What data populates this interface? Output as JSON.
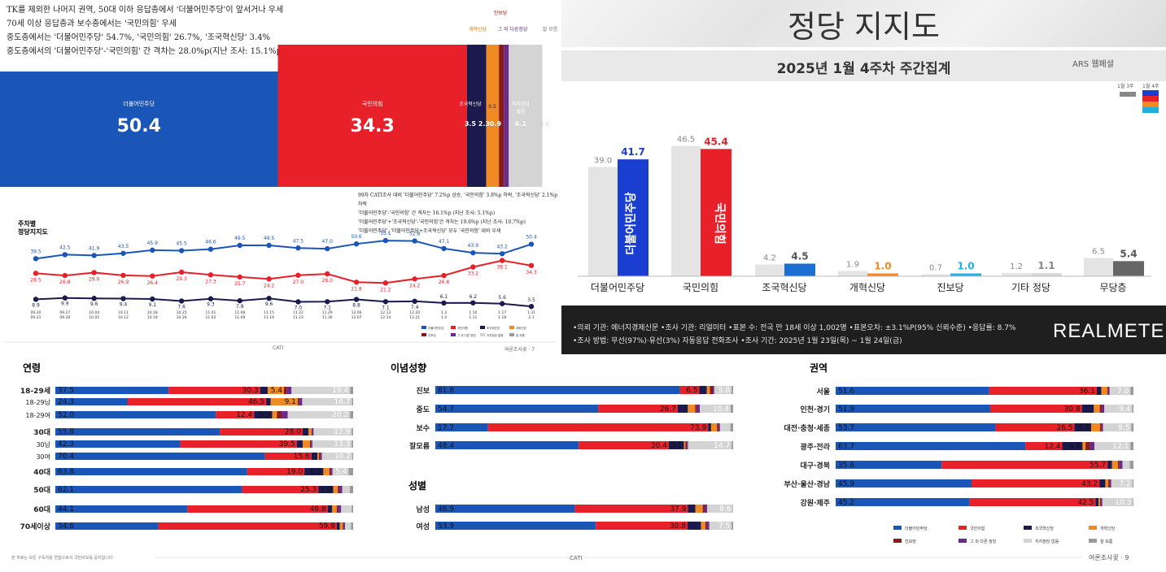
{
  "colors": {
    "blue": "#1a56b8",
    "red": "#e8202a",
    "navy": "#1b1a4e",
    "orange": "#f08a24",
    "darkred": "#8b1a1a",
    "purple": "#6a2a8a",
    "lightgray": "#d4d4d4",
    "gray": "#9a9a9a",
    "darkgray": "#5a5a5a"
  },
  "panel1": {
    "notes": [
      "TK를 제외한 나머지 권역, 50대 이하 응답층에서 '더불어민주당'이 앞서거나 우세",
      "70세 이상 응답층과 보수층에서는 '국민의힘' 우세",
      "중도층에서는 '더불어민주당' 54.7%, '국민의힘' 26.7%, '조국혁신당' 3.4%",
      "중도층에서의 '더불어민주당'-'국민의힘' 간 격차는 28.0%p(지난 조사: 15.1%p)"
    ],
    "legend_top": [
      "진보당",
      "개혁신당",
      "그 외 다른정당",
      "잘 모름"
    ],
    "chart_data": {
      "type": "bar",
      "categories": [
        "더불어민주당",
        "국민의힘",
        "조국혁신당",
        "개혁신당",
        "진보당",
        "그 외 다른정당",
        "지지정당 없음",
        "잘 모름"
      ],
      "values": [
        50.4,
        34.3,
        3.5,
        2.3,
        0.5,
        0.9,
        6.1,
        0.0
      ],
      "labels": [
        "50.4",
        "34.3",
        "3.5",
        "2.3",
        "0.5",
        "0.9",
        "6.1",
        "0.0"
      ],
      "names": [
        "더불어민주당",
        "국민의힘",
        "조국혁신당",
        "",
        "",
        "",
        "지지정당\n없음",
        ""
      ]
    }
  },
  "panel2": {
    "title": "주차별\n정당지지도",
    "notes": [
      "99차 CATI조사 대비 '더불어민주당' 7.2%p 상승, '국민의힘' 3.8%p 하락, '조국혁신당' 2.1%p 하락",
      "'더불어민주당'-'국민의힘' 간 격차는 16.1%p (지난 조사: 5.1%p)",
      "'더불어민주당'+'조국혁신당'-'국민의힘'간 격차는 19.6%p (지난 조사: 10.7%p)",
      "'더불어민주당', '더불어민주당+조국혁신당' 모두 '국민의힘' 대비 우세"
    ],
    "chart_data": {
      "type": "line",
      "x": [
        "09.20\n09.21",
        "09.27\n09.28",
        "10.04\n10.05",
        "10.11\n10.12",
        "10.18\n10.19",
        "10.25\n10.26",
        "11.01\n11.02",
        "11.08\n11.09",
        "11.15\n11.16",
        "11.22\n11.23",
        "11.29\n11.30",
        "12.06\n12.07",
        "12.13\n12.14",
        "12.20\n12.21",
        "1.3\n1.4",
        "1.10\n1.11",
        "1.17\n1.18",
        "1.31\n2.1"
      ],
      "series": [
        {
          "name": "더불어민주당",
          "values": [
            39.5,
            42.5,
            41.9,
            43.5,
            45.9,
            45.5,
            46.6,
            49.5,
            49.5,
            47.5,
            47.0,
            50.6,
            53.1,
            52.8,
            47.1,
            43.9,
            43.2,
            50.4
          ]
        },
        {
          "name": "국민의힘",
          "values": [
            28.5,
            26.8,
            29.0,
            26.9,
            26.4,
            29.3,
            27.3,
            25.7,
            24.2,
            27.0,
            28.0,
            21.8,
            21.2,
            24.2,
            26.8,
            33.2,
            38.1,
            34.3
          ]
        },
        {
          "name": "조국혁신당",
          "values": [
            8.9,
            9.9,
            9.6,
            9.4,
            9.1,
            7.6,
            9.3,
            7.8,
            9.6,
            7.0,
            7.1,
            8.8,
            7.1,
            7.4,
            6.1,
            6.2,
            5.6,
            3.5
          ]
        }
      ],
      "label_positions_note": "",
      "legend": [
        "더불어민주당",
        "국민의힘",
        "조국혁신당",
        "개혁신당",
        "진보당",
        "그 외 다른 정당",
        "지지정당 없음",
        "잘 모름"
      ]
    },
    "footer_left": "CATI",
    "footer_right": "여론조사꽃 · 7"
  },
  "panel3": {
    "title": "정당 지지도",
    "subtitle": "2025년 1월 4주차 주간집계",
    "brand_small": "ARS 웹페셜",
    "legend_prev": "1월 3주",
    "legend_curr": "1월 4주",
    "chart_data": {
      "type": "bar",
      "categories": [
        "더불어민주당",
        "국민의힘",
        "조국혁신당",
        "개혁신당",
        "진보당",
        "기타 정당",
        "무당층"
      ],
      "series": [
        {
          "name": "1월 3주",
          "values": [
            39.0,
            46.5,
            4.2,
            1.9,
            0.7,
            1.2,
            6.5
          ]
        },
        {
          "name": "1월 4주",
          "values": [
            41.7,
            45.4,
            4.5,
            1.0,
            1.0,
            1.1,
            5.4
          ]
        }
      ],
      "ylim": [
        0,
        50
      ]
    },
    "logo_dem": "더불어민주당",
    "logo_ppp": "국민의힘",
    "footer_line1": "•의뢰 기관: 에너지경제신문 •조사 기관: 리얼미터 •표본 수: 전국 만 18세 이상 1,002명 •표본오차: ±3.1%P(95% 신뢰수준) •응답률: 8.7%",
    "footer_line2": "•조사 방법: 무선(97%)·유선(3%) 자동응답 전화조사 •조사 기간: 2025년 1월 23일(목) ~ 1월 24일(금)",
    "brand": "REALMETER"
  },
  "panel4": {
    "headers": {
      "age": "연령",
      "ideology": "이념성향",
      "gender": "성별",
      "region": "권역"
    },
    "order": [
      "민주",
      "국힘",
      "조국",
      "개혁",
      "진보",
      "기타",
      "없음",
      "모름"
    ],
    "age_rows": [
      {
        "label": "18-29세",
        "vals": [
          37.5,
          30.3,
          2.5,
          5.4,
          1.0,
          1.5,
          19.4,
          1.0
        ],
        "labels": [
          "37.5",
          "30.3",
          "",
          "5.4",
          "",
          "",
          "19.4",
          ""
        ],
        "bold": true
      },
      {
        "label": "18-29남",
        "vals": [
          24.3,
          46.5,
          1.5,
          9.1,
          0.5,
          1.0,
          16.7,
          0.4
        ],
        "labels": [
          "24.3",
          "46.5",
          "",
          "9.1",
          "",
          "",
          "16.7",
          ""
        ],
        "bold": false
      },
      {
        "label": "18-29여",
        "vals": [
          52.0,
          12.4,
          5.9,
          1.5,
          1.5,
          2.0,
          20.2,
          1.0
        ],
        "labels": [
          "52.0",
          "12.4",
          "5.9",
          "",
          "",
          "",
          "20.2",
          ""
        ],
        "bold": false
      },
      {
        "label": "30대",
        "vals": [
          55.8,
          28.0,
          2.0,
          1.0,
          0.2,
          0.5,
          12.9,
          0.5
        ],
        "labels": [
          "55.8",
          "28.0",
          "",
          "",
          "",
          "",
          "12.9",
          ""
        ],
        "bold": true
      },
      {
        "label": "30남",
        "vals": [
          42.3,
          39.5,
          2.0,
          2.5,
          0.3,
          0.5,
          13.3,
          0.5
        ],
        "labels": [
          "42.3",
          "39.5",
          "",
          "",
          "",
          "",
          "13.3",
          ""
        ],
        "bold": false
      },
      {
        "label": "30여",
        "vals": [
          70.4,
          15.6,
          2.0,
          0.5,
          0.5,
          0.5,
          10.2,
          0.3
        ],
        "labels": [
          "70.4",
          "15.6",
          "",
          "",
          "",
          "",
          "10.2",
          ""
        ],
        "bold": false
      },
      {
        "label": "40대",
        "vals": [
          63.8,
          19.0,
          6.3,
          2.0,
          0.5,
          0.5,
          5.4,
          1.5
        ],
        "labels": [
          "63.8",
          "19.0",
          "6.3",
          "",
          "",
          "",
          "5.4",
          ""
        ],
        "bold": true
      },
      {
        "label": "50대",
        "vals": [
          62.1,
          25.3,
          5.0,
          1.5,
          0.5,
          1.0,
          2.5,
          1.1
        ],
        "labels": [
          "62.1",
          "25.3",
          "5.0",
          "",
          "",
          "",
          "",
          ""
        ],
        "bold": true
      },
      {
        "label": "60대",
        "vals": [
          44.1,
          46.8,
          1.5,
          1.5,
          0.5,
          1.0,
          3.5,
          0.5
        ],
        "labels": [
          "44.1",
          "46.8",
          "",
          "",
          "",
          "",
          "",
          ""
        ],
        "bold": true
      },
      {
        "label": "70세이상",
        "vals": [
          34.6,
          59.9,
          1.0,
          1.0,
          0.3,
          0.5,
          2.0,
          0.7
        ],
        "labels": [
          "34.6",
          "59.9",
          "",
          "",
          "",
          "",
          "",
          ""
        ],
        "bold": true
      }
    ],
    "ideology_rows": [
      {
        "label": "진보",
        "vals": [
          81.8,
          6.5,
          2.5,
          1.0,
          1.0,
          0.5,
          5.8,
          0.5
        ],
        "labels": [
          "81.8",
          "6.5",
          "",
          "",
          "",
          "",
          "5.8",
          ""
        ]
      },
      {
        "label": "중도",
        "vals": [
          54.7,
          26.7,
          3.4,
          2.5,
          0.5,
          1.0,
          10.4,
          0.8
        ],
        "labels": [
          "54.7",
          "26.7",
          "",
          "",
          "",
          "",
          "10.4",
          ""
        ]
      },
      {
        "label": "보수",
        "vals": [
          17.7,
          73.9,
          1.0,
          2.0,
          0.5,
          0.5,
          3.5,
          0.9
        ],
        "labels": [
          "17.7",
          "73.9",
          "",
          "",
          "",
          "",
          "",
          ""
        ]
      },
      {
        "label": "잘모름",
        "vals": [
          48.4,
          30.4,
          5.1,
          0.5,
          0.5,
          0.4,
          14.7,
          0.5
        ],
        "labels": [
          "48.4",
          "30.4",
          "5.1",
          "",
          "",
          "",
          "14.7",
          ""
        ]
      }
    ],
    "gender_rows": [
      {
        "label": "남성",
        "vals": [
          46.9,
          37.9,
          2.5,
          2.5,
          0.5,
          1.0,
          8.6,
          0.1
        ],
        "labels": [
          "46.9",
          "37.9",
          "",
          "",
          "",
          "",
          "8.6",
          ""
        ]
      },
      {
        "label": "여성",
        "vals": [
          53.9,
          30.8,
          4.5,
          1.5,
          0.5,
          0.8,
          7.5,
          0.5
        ],
        "labels": [
          "53.9",
          "30.8",
          "",
          "",
          "",
          "",
          "7.5",
          ""
        ]
      }
    ],
    "region_rows": [
      {
        "label": "서울",
        "vals": [
          51.6,
          36.1,
          1.5,
          2.0,
          0.3,
          0.5,
          7.0,
          1.0
        ],
        "labels": [
          "51.6",
          "36.1",
          "",
          "",
          "",
          "",
          "7.0",
          ""
        ]
      },
      {
        "label": "인천·경기",
        "vals": [
          51.9,
          30.8,
          4.0,
          2.0,
          0.5,
          1.0,
          9.4,
          0.4
        ],
        "labels": [
          "51.9",
          "30.8",
          "",
          "",
          "",
          "",
          "9.4",
          ""
        ]
      },
      {
        "label": "대전·충청·세종",
        "vals": [
          53.7,
          26.5,
          5.6,
          3.0,
          0.5,
          0.5,
          9.5,
          0.7
        ],
        "labels": [
          "53.7",
          "26.5",
          "5.6",
          "",
          "",
          "",
          "9.5",
          ""
        ]
      },
      {
        "label": "광주·전라",
        "vals": [
          63.7,
          12.4,
          6.8,
          1.0,
          1.5,
          1.5,
          12.1,
          1.0
        ],
        "labels": [
          "63.7",
          "12.4",
          "6.8",
          "",
          "",
          "",
          "12.1",
          ""
        ]
      },
      {
        "label": "대구·경북",
        "vals": [
          35.6,
          55.7,
          1.5,
          2.0,
          0.5,
          1.0,
          2.5,
          1.2
        ],
        "labels": [
          "35.6",
          "55.7",
          "",
          "",
          "",
          "",
          "",
          ""
        ]
      },
      {
        "label": "부산·울산·경남",
        "vals": [
          45.9,
          43.2,
          2.0,
          1.0,
          0.5,
          0.5,
          7.2,
          0.3
        ],
        "labels": [
          "45.9",
          "43.2",
          "",
          "",
          "",
          "",
          "7.2",
          ""
        ]
      },
      {
        "label": "강원·제주",
        "vals": [
          45.2,
          42.5,
          1.0,
          0.5,
          0.3,
          0.5,
          10.3,
          0.2
        ],
        "labels": [
          "45.2",
          "42.5",
          "",
          "",
          "",
          "",
          "10.3",
          ""
        ]
      }
    ],
    "legend": [
      "더불어민주당",
      "국민의힘",
      "조국혁신당",
      "개혁신당",
      "진보당",
      "그 외 다른 정당",
      "지지정당 없음",
      "잘 모름"
    ],
    "footer_left": "본 자료는 모든 구독자를 연합으로서 국민비보를 공지합니다",
    "footer_mid": "CATI",
    "footer_right": "여론조사꽃 · 9"
  }
}
